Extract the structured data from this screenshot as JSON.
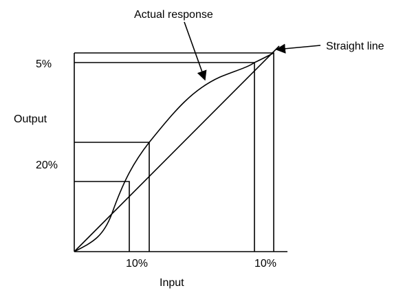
{
  "labels": {
    "actual_response": "Actual response",
    "straight_line": "Straight line",
    "output": "Output",
    "input": "Input"
  },
  "y_marks": [
    "5%",
    "20%"
  ],
  "x_marks": [
    "10%",
    "10%"
  ]
}
